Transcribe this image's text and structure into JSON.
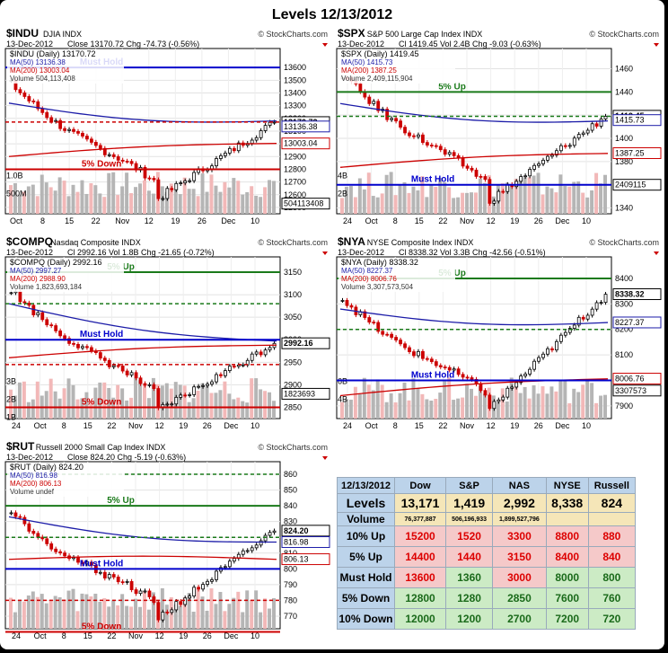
{
  "title": "Levels 12/13/2012",
  "colors": {
    "up": "#cc0000",
    "down": "#111111",
    "ma50": "#1c1ca8",
    "ma200": "#cc0000",
    "green": "#1a7a1a",
    "blue": "#0000cc",
    "volume": "#b5b5b5",
    "volume_up": "#f2b8b8"
  },
  "charts": [
    {
      "id": "indu",
      "symbol": "$INDU",
      "name": "DJIA",
      "exch": "INDX",
      "credit": "© StockCharts.com",
      "date": "13-Dec-2012",
      "stats": "Close 13170.72  Chg -74.73 (-0.56%)",
      "legend_title": "$INDU (Daily) 13170.72",
      "ma50_label": "MA(50) 13136.38",
      "ma200_label": "MA(200) 13003.04",
      "vol_label": "Volume 504,113,408",
      "ylim": [
        12450,
        13700
      ],
      "yticks": [
        "13600",
        "13500",
        "13400",
        "13300",
        "13200",
        "13100",
        "13000",
        "12900",
        "12800",
        "12700",
        "12600",
        "12500"
      ],
      "ytick_vals": [
        13600,
        13500,
        13400,
        13300,
        13200,
        13100,
        13000,
        12900,
        12800,
        12700,
        12600,
        12500
      ],
      "vol_ticks": [
        "1.0B",
        "500M"
      ],
      "xticks": [
        "Oct",
        "8",
        "15",
        "22",
        "Nov",
        "12",
        "19",
        "26",
        "Dec",
        "10"
      ],
      "tags": [
        {
          "label": "13170.72",
          "v": 13170.72,
          "style": "last"
        },
        {
          "label": "13136.38",
          "v": 13136.38,
          "style": "blue"
        },
        {
          "label": "13003.04",
          "v": 13003.04,
          "style": "red"
        },
        {
          "label": "504113408",
          "v": 12530,
          "style": "vol"
        }
      ],
      "lines": [
        {
          "label": "Must Hold",
          "v": 13600,
          "color": "blue",
          "dash": false
        },
        {
          "label": "",
          "v": 13171,
          "color": "red",
          "dash": true
        },
        {
          "label": "5% Down",
          "v": 12800,
          "color": "red",
          "dash": false
        }
      ],
      "start": 13470,
      "end": 13170,
      "low": 12560,
      "ma50": [
        13320,
        13180
      ],
      "ma200": [
        12900,
        13003
      ]
    },
    {
      "id": "spx",
      "symbol": "$SPX",
      "name": "S&P 500 Large Cap Index",
      "exch": "INDX",
      "credit": "© StockCharts.com",
      "date": "13-Dec-2012",
      "stats": "Cl 1419.45  Vol 2.4B  Chg -9.03 (-0.63%)",
      "legend_title": "$SPX (Daily) 1419.45",
      "ma50_label": "MA(50) 1415.73",
      "ma200_label": "MA(200) 1387.25",
      "vol_label": "Volume 2,409,115,904",
      "ylim": [
        1335,
        1472
      ],
      "yticks": [
        "1460",
        "1440",
        "1420",
        "1400",
        "1380",
        "1360",
        "1340"
      ],
      "ytick_vals": [
        1460,
        1440,
        1420,
        1400,
        1380,
        1360,
        1340
      ],
      "vol_ticks": [
        "4B",
        "2B"
      ],
      "xticks": [
        "24",
        "Oct",
        "8",
        "15",
        "22",
        "Nov",
        "12",
        "19",
        "26",
        "Dec",
        "10"
      ],
      "tags": [
        {
          "label": "1419.45",
          "v": 1419.45,
          "style": "last"
        },
        {
          "label": "1415.73",
          "v": 1415.73,
          "style": "blue"
        },
        {
          "label": "1387.25",
          "v": 1387.25,
          "style": "red"
        },
        {
          "label": "2409115",
          "v": 1360,
          "style": "vol"
        }
      ],
      "lines": [
        {
          "label": "5% Up",
          "v": 1440,
          "color": "green",
          "dash": false
        },
        {
          "label": "",
          "v": 1419,
          "color": "green",
          "dash": true
        },
        {
          "label": "Must Hold",
          "v": 1360,
          "color": "blue",
          "dash": false
        }
      ],
      "start": 1455,
      "end": 1419,
      "low": 1345,
      "ma50": [
        1430,
        1415
      ],
      "ma200": [
        1375,
        1387
      ]
    },
    {
      "id": "compq",
      "symbol": "$COMPQ",
      "name": "Nasdaq Composite",
      "exch": "INDX",
      "credit": "© StockCharts.com",
      "date": "13-Dec-2012",
      "stats": "Cl 2992.16  Vol 1.8B  Chg -21.65 (-0.72%)",
      "legend_title": "$COMPQ (Daily) 2992.16",
      "ma50_label": "MA(50) 2997.27",
      "ma200_label": "MA(200) 2988.90",
      "vol_label": "Volume 1,823,693,184",
      "ylim": [
        2825,
        3170
      ],
      "yticks": [
        "3150",
        "3100",
        "3050",
        "3000",
        "2950",
        "2900",
        "2850"
      ],
      "ytick_vals": [
        3150,
        3100,
        3050,
        3000,
        2950,
        2900,
        2850
      ],
      "vol_ticks": [
        "3B",
        "2B",
        "1B"
      ],
      "xticks": [
        "24",
        "Oct",
        "8",
        "15",
        "22",
        "Nov",
        "12",
        "19",
        "26",
        "Dec",
        "10"
      ],
      "tags": [
        {
          "label": "2992.16",
          "v": 2992.16,
          "style": "last"
        },
        {
          "label": "1823693",
          "v": 2880,
          "style": "vol"
        }
      ],
      "lines": [
        {
          "label": "5% Up",
          "v": 3150,
          "color": "green",
          "dash": false
        },
        {
          "label": "",
          "v": 3080,
          "color": "green",
          "dash": true
        },
        {
          "label": "Must Hold",
          "v": 3000,
          "color": "blue",
          "dash": false
        },
        {
          "label": "",
          "v": 2945,
          "color": "red",
          "dash": true
        },
        {
          "label": "5% Down",
          "v": 2850,
          "color": "red",
          "dash": false
        }
      ],
      "start": 3110,
      "end": 2992,
      "low": 2840,
      "ma50": [
        3080,
        2997
      ],
      "ma200": [
        2960,
        2988
      ]
    },
    {
      "id": "nya",
      "symbol": "$NYA",
      "name": "NYSE Composite Index",
      "exch": "INDX",
      "credit": "© StockCharts.com",
      "date": "13-Dec-2012",
      "stats": "Cl 8338.32  Vol 3.3B  Chg -42.56 (-0.51%)",
      "legend_title": "$NYA (Daily) 8338.32",
      "ma50_label": "MA(50) 8227.37",
      "ma200_label": "MA(200) 8006.76",
      "vol_label": "Volume 3,307,573,504",
      "ylim": [
        7850,
        8460
      ],
      "yticks": [
        "8400",
        "8300",
        "8200",
        "8100",
        "8000",
        "7900"
      ],
      "ytick_vals": [
        8400,
        8300,
        8200,
        8100,
        8000,
        7900
      ],
      "vol_ticks": [
        "6B",
        "4B"
      ],
      "xticks": [
        "24",
        "Oct",
        "8",
        "15",
        "22",
        "Nov",
        "12",
        "19",
        "26",
        "Dec",
        "10"
      ],
      "tags": [
        {
          "label": "8338.32",
          "v": 8338.32,
          "style": "last"
        },
        {
          "label": "8227.37",
          "v": 8227.37,
          "style": "blue"
        },
        {
          "label": "8006.76",
          "v": 8006.76,
          "style": "red"
        },
        {
          "label": "3307573",
          "v": 7960,
          "style": "vol"
        }
      ],
      "lines": [
        {
          "label": "5% Up",
          "v": 8400,
          "color": "green",
          "dash": false
        },
        {
          "label": "",
          "v": 8200,
          "color": "green",
          "dash": true
        },
        {
          "label": "Must Hold",
          "v": 8000,
          "color": "blue",
          "dash": false
        }
      ],
      "start": 8320,
      "end": 8338,
      "low": 7880,
      "ma50": [
        8280,
        8227
      ],
      "ma200": [
        7940,
        8006
      ]
    },
    {
      "id": "rut",
      "symbol": "$RUT",
      "name": "Russell 2000 Small Cap Index",
      "exch": "INDX",
      "credit": "© StockCharts.com",
      "date": "13-Dec-2012",
      "stats": "Close 824.20  Chg -5.19 (-0.63%)",
      "legend_title": "$RUT (Daily) 824.20",
      "ma50_label": "MA(50) 816.98",
      "ma200_label": "MA(200) 806.13",
      "vol_label": "Volume undef",
      "ylim": [
        762,
        864
      ],
      "yticks": [
        "860",
        "850",
        "840",
        "830",
        "820",
        "810",
        "800",
        "790",
        "780",
        "770"
      ],
      "ytick_vals": [
        860,
        850,
        840,
        830,
        820,
        810,
        800,
        790,
        780,
        770
      ],
      "vol_ticks": [],
      "xticks": [
        "24",
        "Oct",
        "8",
        "15",
        "22",
        "Nov",
        "12",
        "19",
        "26",
        "Dec",
        "10"
      ],
      "tags": [
        {
          "label": "824.20",
          "v": 824.2,
          "style": "last"
        },
        {
          "label": "816.98",
          "v": 816.98,
          "style": "blue"
        },
        {
          "label": "806.13",
          "v": 806.13,
          "style": "red"
        }
      ],
      "lines": [
        {
          "label": "",
          "v": 860,
          "color": "green",
          "dash": true
        },
        {
          "label": "5% Up",
          "v": 840,
          "color": "green",
          "dash": false
        },
        {
          "label": "",
          "v": 820,
          "color": "green",
          "dash": true
        },
        {
          "label": "Must Hold",
          "v": 800,
          "color": "blue",
          "dash": false
        },
        {
          "label": "",
          "v": 780,
          "color": "red",
          "dash": true
        },
        {
          "label": "5% Down",
          "v": 760,
          "color": "red",
          "dash": false
        }
      ],
      "start": 836,
      "end": 824,
      "low": 768,
      "ma50": [
        833,
        817
      ],
      "ma200": [
        806,
        806
      ]
    }
  ],
  "table": {
    "header": [
      "12/13/2012",
      "Dow",
      "S&P",
      "NAS",
      "NYSE",
      "Russell"
    ],
    "levels": {
      "label": "Levels",
      "values": [
        "13,171",
        "1,419",
        "2,992",
        "8,338",
        "824"
      ]
    },
    "volume": {
      "label": "Volume",
      "values": [
        "76,377,887",
        "506,196,933",
        "1,899,527,796",
        "",
        ""
      ]
    },
    "rows": [
      {
        "label": "10% Up",
        "cls": "up",
        "values": [
          "15200",
          "1520",
          "3300",
          "8800",
          "880"
        ]
      },
      {
        "label": "5% Up",
        "cls": "up",
        "values": [
          "14400",
          "1440",
          "3150",
          "8400",
          "840"
        ]
      },
      {
        "label": "Must Hold",
        "cls": "mh",
        "values": [
          "13600",
          "1360",
          "3000",
          "8000",
          "800"
        ]
      },
      {
        "label": "5% Down",
        "cls": "dn",
        "values": [
          "12800",
          "1280",
          "2850",
          "7600",
          "760"
        ]
      },
      {
        "label": "10% Down",
        "cls": "dn",
        "values": [
          "12000",
          "1200",
          "2700",
          "7200",
          "720"
        ]
      }
    ]
  }
}
